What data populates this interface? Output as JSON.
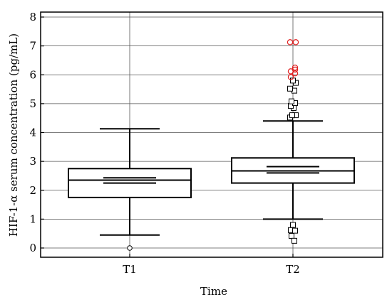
{
  "chart_data": {
    "type": "boxplot",
    "title": "",
    "xlabel": "Time",
    "ylabel": "HIF-1-α serum concentration (pg/mL)",
    "ylim": [
      0,
      8
    ],
    "yticks": [
      0,
      1,
      2,
      3,
      4,
      5,
      6,
      7,
      8
    ],
    "grid": true,
    "categories": [
      "T1",
      "T2"
    ],
    "boxes": [
      {
        "name": "T1",
        "whisker_low": 0.45,
        "q1": 1.75,
        "median": 2.35,
        "q3": 2.75,
        "whisker_high": 4.13,
        "median_ci": [
          2.25,
          2.43
        ],
        "outliers_circle": [
          0.0
        ],
        "outliers_square": [],
        "outliers_far": []
      },
      {
        "name": "T2",
        "whisker_low": 1.0,
        "q1": 2.25,
        "median": 2.67,
        "q3": 3.12,
        "whisker_high": 4.4,
        "median_ci": [
          2.6,
          2.82
        ],
        "outliers_circle": [],
        "outliers_square": [
          0.8,
          0.62,
          0.6,
          0.42,
          0.25,
          4.52,
          4.6,
          4.6,
          4.85,
          4.92,
          5.02,
          5.08,
          5.45,
          5.52,
          5.72,
          5.8
        ],
        "outliers_far": [
          5.92,
          6.05,
          6.12,
          6.18,
          6.25,
          7.13,
          7.13
        ]
      }
    ],
    "colors": {
      "far_outlier": "#e02020",
      "axis": "#000000",
      "grid": "#555555"
    }
  }
}
